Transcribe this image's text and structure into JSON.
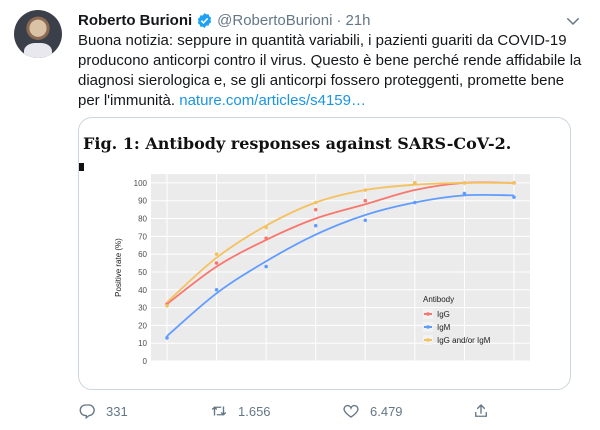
{
  "tweet": {
    "author_name": "Roberto Burioni",
    "handle": "@RobertoBurioni",
    "separator": "·",
    "time": "21h",
    "text_lines": [
      "Buona notizia: seppure in quantità variabili, i pazienti guariti da COVID-19",
      "producono anticorpi contro il virus. Questo è bene perché rende affidabile la",
      "diagnosi sierologica e, se gli anticorpi fossero proteggenti, promette bene"
    ],
    "text_last_prefix": "per l'immunità. ",
    "link_text": "nature.com/articles/s4159…",
    "icons": {
      "avatar": "avatar-photo",
      "verified": "verified-badge-icon",
      "caret": "chevron-down-icon"
    },
    "accent_color": "#1da1f2",
    "link_color": "#1b95e0"
  },
  "media": {
    "figure_title": "Fig. 1: Antibody responses against SARS-CoV-2."
  },
  "chart_data": {
    "type": "line",
    "title": "",
    "xlabel": "",
    "ylabel": "Positive rate (%)",
    "ylim": [
      0,
      105
    ],
    "yticks": [
      0,
      10,
      20,
      30,
      40,
      50,
      60,
      70,
      80,
      90,
      100
    ],
    "x": [
      1,
      2,
      3,
      4,
      5,
      6,
      7,
      8
    ],
    "grid": true,
    "legend": {
      "title": "Antibody",
      "placement": "bottom-right"
    },
    "series": [
      {
        "name": "IgG",
        "color": "#f8766d",
        "points": [
          32,
          55,
          69,
          85,
          90,
          100,
          100,
          100
        ],
        "curve": [
          32,
          53,
          68,
          80,
          88,
          96,
          100,
          100
        ]
      },
      {
        "name": "IgM",
        "color": "#619cff",
        "points": [
          13,
          40,
          53,
          76,
          79,
          89,
          94,
          92
        ],
        "curve": [
          14,
          38,
          56,
          71,
          82,
          89,
          93,
          93
        ]
      },
      {
        "name": "IgG and/or IgM",
        "color": "#f5c15e",
        "points": [
          31,
          60,
          75,
          89,
          96,
          100,
          100,
          100
        ],
        "curve": [
          33,
          58,
          76,
          89,
          96,
          99,
          100,
          100
        ]
      }
    ]
  },
  "actions": {
    "reply_count": "331",
    "retweet_count": "1.656",
    "like_count": "6.479",
    "icons": [
      "reply-icon",
      "retweet-icon",
      "like-icon",
      "share-icon"
    ]
  }
}
